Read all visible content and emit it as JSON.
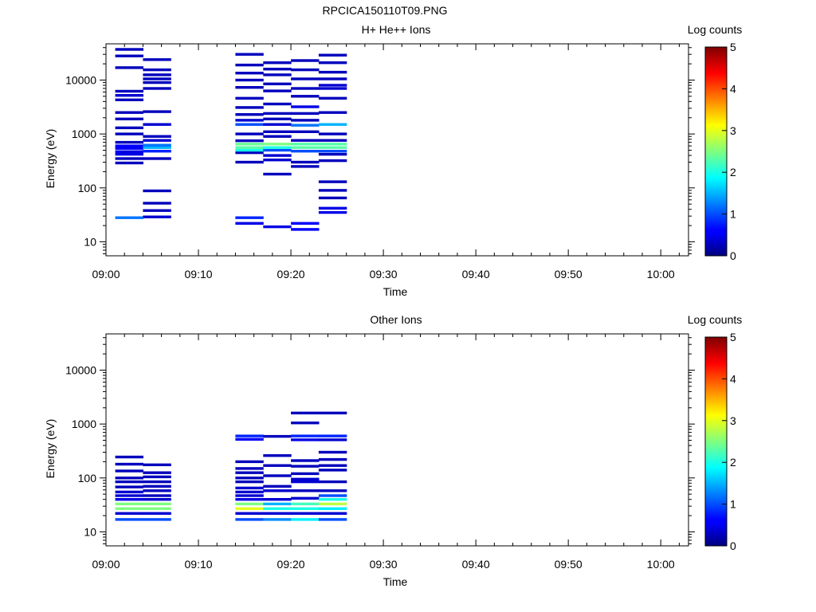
{
  "figure": {
    "title": "RPCICA150110T09.PNG"
  },
  "chart_data": [
    {
      "type": "heatmap",
      "title": "H+ He++ Ions",
      "xlabel": "Time",
      "ylabel": "Energy (eV)",
      "x_tick_labels": [
        "09:00",
        "09:10",
        "09:20",
        "09:30",
        "09:40",
        "09:50",
        "10:00"
      ],
      "xlim": [
        "09:00",
        "10:03"
      ],
      "y_scale": "log",
      "ylim": [
        5.5,
        47000
      ],
      "y_tick_labels": [
        "10",
        "100",
        "1000",
        "10000"
      ],
      "colorbar": {
        "label": "Log counts",
        "range": [
          0,
          5
        ],
        "tick_labels": [
          "0",
          "1",
          "2",
          "3",
          "4",
          "5"
        ],
        "colormap": "jet"
      },
      "time_bins": [
        {
          "start": "09:01",
          "end": "09:04",
          "cells": [
            [
              28,
              1.2
            ],
            [
              290,
              0.3
            ],
            [
              350,
              0.3
            ],
            [
              420,
              0.5
            ],
            [
              470,
              0.5
            ],
            [
              540,
              0.6
            ],
            [
              600,
              0.6
            ],
            [
              700,
              0.3
            ],
            [
              1000,
              0.3
            ],
            [
              1300,
              0.3
            ],
            [
              1900,
              0.3
            ],
            [
              2500,
              0.3
            ],
            [
              4300,
              0.3
            ],
            [
              5200,
              0.4
            ],
            [
              6200,
              0.3
            ],
            [
              17000,
              0.3
            ],
            [
              28000,
              0.3
            ],
            [
              37000,
              0.3
            ]
          ]
        },
        {
          "start": "09:04",
          "end": "09:07",
          "cells": [
            [
              29,
              0.4
            ],
            [
              38,
              0.3
            ],
            [
              52,
              0.3
            ],
            [
              88,
              0.3
            ],
            [
              350,
              0.3
            ],
            [
              480,
              0.8
            ],
            [
              560,
              1.5
            ],
            [
              620,
              1.2
            ],
            [
              760,
              0.4
            ],
            [
              900,
              0.3
            ],
            [
              1500,
              0.4
            ],
            [
              2600,
              0.3
            ],
            [
              7000,
              0.3
            ],
            [
              9000,
              0.3
            ],
            [
              10500,
              0.3
            ],
            [
              12500,
              0.3
            ],
            [
              15500,
              0.3
            ],
            [
              24000,
              0.3
            ]
          ]
        },
        {
          "start": "09:14",
          "end": "09:17",
          "cells": [
            [
              22,
              0.5
            ],
            [
              28,
              0.8
            ],
            [
              300,
              0.3
            ],
            [
              450,
              0.3
            ],
            [
              500,
              2.0
            ],
            [
              560,
              2.3
            ],
            [
              650,
              2.4
            ],
            [
              750,
              0.3
            ],
            [
              1000,
              0.3
            ],
            [
              1500,
              1.0
            ],
            [
              1800,
              0.4
            ],
            [
              2300,
              0.3
            ],
            [
              3100,
              0.3
            ],
            [
              4600,
              0.3
            ],
            [
              7300,
              0.3
            ],
            [
              10000,
              0.3
            ],
            [
              13500,
              0.3
            ],
            [
              19000,
              0.3
            ],
            [
              30000,
              0.3
            ]
          ]
        },
        {
          "start": "09:17",
          "end": "09:20",
          "cells": [
            [
              19,
              0.5
            ],
            [
              180,
              0.3
            ],
            [
              330,
              0.4
            ],
            [
              400,
              0.4
            ],
            [
              500,
              1.0
            ],
            [
              560,
              2.0
            ],
            [
              650,
              2.5
            ],
            [
              900,
              0.3
            ],
            [
              1100,
              0.3
            ],
            [
              1500,
              0.4
            ],
            [
              1900,
              0.3
            ],
            [
              2400,
              0.3
            ],
            [
              3600,
              0.3
            ],
            [
              6300,
              0.3
            ],
            [
              8500,
              0.3
            ],
            [
              12500,
              0.3
            ],
            [
              16000,
              0.3
            ],
            [
              21000,
              0.3
            ]
          ]
        },
        {
          "start": "09:20",
          "end": "09:23",
          "cells": [
            [
              17,
              0.6
            ],
            [
              22,
              0.6
            ],
            [
              250,
              0.3
            ],
            [
              300,
              0.3
            ],
            [
              480,
              1.0
            ],
            [
              560,
              2.3
            ],
            [
              650,
              2.3
            ],
            [
              760,
              0.3
            ],
            [
              1100,
              0.3
            ],
            [
              1450,
              1.2
            ],
            [
              1800,
              0.3
            ],
            [
              2400,
              0.3
            ],
            [
              3200,
              0.5
            ],
            [
              5000,
              0.3
            ],
            [
              7000,
              0.3
            ],
            [
              10500,
              0.3
            ],
            [
              15500,
              0.3
            ],
            [
              23000,
              0.3
            ]
          ]
        },
        {
          "start": "09:23",
          "end": "09:26",
          "cells": [
            [
              35,
              0.5
            ],
            [
              42,
              0.5
            ],
            [
              65,
              0.3
            ],
            [
              90,
              0.3
            ],
            [
              130,
              0.3
            ],
            [
              320,
              0.3
            ],
            [
              420,
              0.3
            ],
            [
              480,
              1.0
            ],
            [
              560,
              2.3
            ],
            [
              650,
              2.3
            ],
            [
              760,
              0.3
            ],
            [
              1000,
              0.3
            ],
            [
              1500,
              1.5
            ],
            [
              2500,
              0.3
            ],
            [
              4600,
              0.3
            ],
            [
              7000,
              0.4
            ],
            [
              8000,
              0.4
            ],
            [
              10500,
              0.3
            ],
            [
              14000,
              0.3
            ],
            [
              21000,
              0.3
            ],
            [
              29000,
              0.3
            ]
          ]
        }
      ]
    },
    {
      "type": "heatmap",
      "title": "Other Ions",
      "xlabel": "Time",
      "ylabel": "Energy (eV)",
      "x_tick_labels": [
        "09:00",
        "09:10",
        "09:20",
        "09:30",
        "09:40",
        "09:50",
        "10:00"
      ],
      "xlim": [
        "09:00",
        "10:03"
      ],
      "y_scale": "log",
      "ylim": [
        5.5,
        47000
      ],
      "y_tick_labels": [
        "10",
        "100",
        "1000",
        "10000"
      ],
      "colorbar": {
        "label": "Log counts",
        "range": [
          0,
          5
        ],
        "tick_labels": [
          "0",
          "1",
          "2",
          "3",
          "4",
          "5"
        ],
        "colormap": "jet"
      },
      "time_bins": [
        {
          "start": "09:01",
          "end": "09:04",
          "cells": [
            [
              17,
              1.0
            ],
            [
              22,
              0.4
            ],
            [
              27,
              2.5
            ],
            [
              33,
              2.5
            ],
            [
              40,
              0.5
            ],
            [
              47,
              0.4
            ],
            [
              55,
              0.4
            ],
            [
              68,
              0.3
            ],
            [
              85,
              0.3
            ],
            [
              100,
              0.3
            ],
            [
              135,
              0.3
            ],
            [
              180,
              0.3
            ],
            [
              245,
              0.3
            ]
          ]
        },
        {
          "start": "09:04",
          "end": "09:07",
          "cells": [
            [
              17,
              1.0
            ],
            [
              22,
              0.4
            ],
            [
              27,
              2.5
            ],
            [
              33,
              2.5
            ],
            [
              40,
              0.4
            ],
            [
              47,
              0.3
            ],
            [
              58,
              0.3
            ],
            [
              70,
              0.3
            ],
            [
              85,
              0.3
            ],
            [
              105,
              0.3
            ],
            [
              125,
              0.3
            ],
            [
              175,
              0.3
            ]
          ]
        },
        {
          "start": "09:14",
          "end": "09:17",
          "cells": [
            [
              17,
              1.0
            ],
            [
              22,
              0.4
            ],
            [
              27,
              3.0
            ],
            [
              33,
              2.5
            ],
            [
              40,
              0.5
            ],
            [
              47,
              0.4
            ],
            [
              55,
              0.4
            ],
            [
              65,
              0.4
            ],
            [
              85,
              0.3
            ],
            [
              100,
              0.3
            ],
            [
              125,
              0.3
            ],
            [
              150,
              0.3
            ],
            [
              200,
              0.3
            ],
            [
              520,
              0.6
            ],
            [
              600,
              0.8
            ]
          ]
        },
        {
          "start": "09:17",
          "end": "09:20",
          "cells": [
            [
              17,
              1.3
            ],
            [
              22,
              0.4
            ],
            [
              27,
              2.0
            ],
            [
              33,
              1.5
            ],
            [
              40,
              0.4
            ],
            [
              58,
              0.4
            ],
            [
              70,
              0.3
            ],
            [
              110,
              0.3
            ],
            [
              170,
              0.3
            ],
            [
              260,
              0.3
            ],
            [
              590,
              0.3
            ]
          ]
        },
        {
          "start": "09:20",
          "end": "09:23",
          "cells": [
            [
              17,
              1.8
            ],
            [
              22,
              0.4
            ],
            [
              27,
              2.0
            ],
            [
              33,
              2.2
            ],
            [
              42,
              0.4
            ],
            [
              58,
              0.3
            ],
            [
              85,
              0.4
            ],
            [
              95,
              0.4
            ],
            [
              120,
              0.3
            ],
            [
              165,
              0.3
            ],
            [
              210,
              0.3
            ],
            [
              510,
              0.5
            ],
            [
              600,
              0.8
            ],
            [
              1050,
              0.3
            ],
            [
              1600,
              0.3
            ]
          ]
        },
        {
          "start": "09:23",
          "end": "09:26",
          "cells": [
            [
              17,
              1.0
            ],
            [
              22,
              0.4
            ],
            [
              27,
              1.8
            ],
            [
              33,
              2.8
            ],
            [
              40,
              2.0
            ],
            [
              47,
              1.0
            ],
            [
              58,
              0.3
            ],
            [
              85,
              0.3
            ],
            [
              140,
              0.3
            ],
            [
              170,
              0.3
            ],
            [
              220,
              0.3
            ],
            [
              300,
              0.3
            ],
            [
              510,
              0.4
            ],
            [
              600,
              0.8
            ],
            [
              1600,
              0.3
            ]
          ]
        }
      ]
    }
  ]
}
